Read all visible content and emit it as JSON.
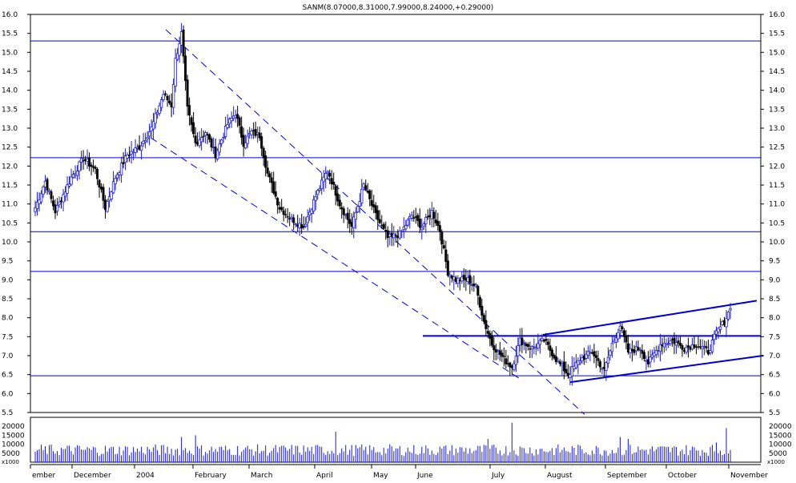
{
  "chart_data": {
    "type": "candlestick",
    "title": "SANM(8.07000,8.31000,7.99000,8.24000,+0.29000)",
    "price_axis": {
      "min": 5.5,
      "max": 16.0,
      "step": 0.5,
      "tick_labels": [
        "5.5",
        "6.0",
        "6.5",
        "7.0",
        "7.5",
        "8.0",
        "8.5",
        "9.0",
        "9.5",
        "10.0",
        "10.5",
        "11.0",
        "11.5",
        "12.0",
        "12.5",
        "13.0",
        "13.5",
        "14.0",
        "14.5",
        "15.0",
        "15.5",
        "16.0"
      ]
    },
    "volume_axis": {
      "min": 0,
      "max": 25000,
      "tick_values": [
        5000,
        10000,
        15000,
        20000
      ],
      "tick_labels": [
        "5000",
        "10000",
        "15000",
        "20000"
      ],
      "multiplier_label": "x1000"
    },
    "time_axis": {
      "labels": [
        "ember",
        "December",
        "2004",
        "February",
        "March",
        "April",
        "May",
        "June",
        "July",
        "August",
        "September",
        "October",
        "November"
      ]
    },
    "horizontal_lines": [
      15.3,
      12.22,
      10.27,
      9.22,
      6.47
    ],
    "support_line": {
      "level": 7.52,
      "from_month_position": 0.47
    },
    "trend_channels": [
      {
        "name": "downtrend-upper",
        "points": [
          [
            0.0,
            15.6
          ],
          [
            1.0,
            5.45
          ]
        ],
        "dashed": true
      },
      {
        "name": "downtrend-lower",
        "points": [
          [
            0.0,
            12.75
          ],
          [
            1.0,
            6.35
          ]
        ],
        "dashed": true
      },
      {
        "name": "uptrend-upper",
        "points": [
          [
            0.0,
            7.55
          ],
          [
            1.0,
            8.45
          ]
        ],
        "dashed": false
      },
      {
        "name": "uptrend-lower",
        "points": [
          [
            0.0,
            6.3
          ],
          [
            1.0,
            7.0
          ]
        ],
        "dashed": false
      }
    ],
    "price_waypoints": [
      {
        "day": 0,
        "close": 10.9
      },
      {
        "day": 5,
        "close": 11.6
      },
      {
        "day": 10,
        "close": 10.8
      },
      {
        "day": 18,
        "close": 11.7
      },
      {
        "day": 24,
        "close": 12.2
      },
      {
        "day": 30,
        "close": 11.9
      },
      {
        "day": 35,
        "close": 10.9
      },
      {
        "day": 40,
        "close": 11.7
      },
      {
        "day": 46,
        "close": 12.3
      },
      {
        "day": 52,
        "close": 12.5
      },
      {
        "day": 58,
        "close": 13.0
      },
      {
        "day": 64,
        "close": 13.9
      },
      {
        "day": 68,
        "close": 13.6
      },
      {
        "day": 70,
        "close": 14.8
      },
      {
        "day": 73,
        "close": 15.5
      },
      {
        "day": 76,
        "close": 13.5
      },
      {
        "day": 80,
        "close": 12.6
      },
      {
        "day": 85,
        "close": 12.9
      },
      {
        "day": 90,
        "close": 12.3
      },
      {
        "day": 96,
        "close": 13.1
      },
      {
        "day": 100,
        "close": 13.4
      },
      {
        "day": 104,
        "close": 12.6
      },
      {
        "day": 108,
        "close": 12.9
      },
      {
        "day": 112,
        "close": 12.8
      },
      {
        "day": 116,
        "close": 11.8
      },
      {
        "day": 122,
        "close": 10.9
      },
      {
        "day": 128,
        "close": 10.6
      },
      {
        "day": 134,
        "close": 10.4
      },
      {
        "day": 140,
        "close": 11.2
      },
      {
        "day": 146,
        "close": 11.9
      },
      {
        "day": 152,
        "close": 11.0
      },
      {
        "day": 158,
        "close": 10.4
      },
      {
        "day": 164,
        "close": 11.5
      },
      {
        "day": 170,
        "close": 10.7
      },
      {
        "day": 176,
        "close": 10.1
      },
      {
        "day": 182,
        "close": 10.2
      },
      {
        "day": 188,
        "close": 10.7
      },
      {
        "day": 193,
        "close": 10.4
      },
      {
        "day": 198,
        "close": 10.8
      },
      {
        "day": 202,
        "close": 10.3
      },
      {
        "day": 206,
        "close": 9.2
      },
      {
        "day": 210,
        "close": 9.0
      },
      {
        "day": 216,
        "close": 9.0
      },
      {
        "day": 220,
        "close": 8.8
      },
      {
        "day": 224,
        "close": 7.9
      },
      {
        "day": 228,
        "close": 7.3
      },
      {
        "day": 234,
        "close": 6.9
      },
      {
        "day": 238,
        "close": 6.7
      },
      {
        "day": 242,
        "close": 7.4
      },
      {
        "day": 248,
        "close": 7.2
      },
      {
        "day": 254,
        "close": 7.4
      },
      {
        "day": 260,
        "close": 6.9
      },
      {
        "day": 266,
        "close": 6.5
      },
      {
        "day": 272,
        "close": 6.9
      },
      {
        "day": 278,
        "close": 7.1
      },
      {
        "day": 284,
        "close": 6.6
      },
      {
        "day": 288,
        "close": 7.3
      },
      {
        "day": 292,
        "close": 7.8
      },
      {
        "day": 296,
        "close": 7.1
      },
      {
        "day": 302,
        "close": 7.2
      },
      {
        "day": 306,
        "close": 6.8
      },
      {
        "day": 312,
        "close": 7.3
      },
      {
        "day": 318,
        "close": 7.4
      },
      {
        "day": 324,
        "close": 7.2
      },
      {
        "day": 330,
        "close": 7.3
      },
      {
        "day": 336,
        "close": 7.1
      },
      {
        "day": 340,
        "close": 7.6
      },
      {
        "day": 344,
        "close": 7.9
      },
      {
        "day": 347,
        "close": 8.24
      }
    ],
    "volume_spikes": [
      {
        "day": 73,
        "value": 14000
      },
      {
        "day": 80,
        "value": 15000
      },
      {
        "day": 150,
        "value": 17000
      },
      {
        "day": 226,
        "value": 13000
      },
      {
        "day": 238,
        "value": 22000
      },
      {
        "day": 292,
        "value": 14000
      },
      {
        "day": 296,
        "value": 13000
      },
      {
        "day": 340,
        "value": 11000
      },
      {
        "day": 345,
        "value": 19000
      }
    ],
    "grid": false,
    "legend": "none",
    "colors": {
      "up": "#2020c0",
      "down": "#000000",
      "lines": "#0000cc",
      "volume": "#1a1ad0",
      "axis": "#000000"
    }
  }
}
